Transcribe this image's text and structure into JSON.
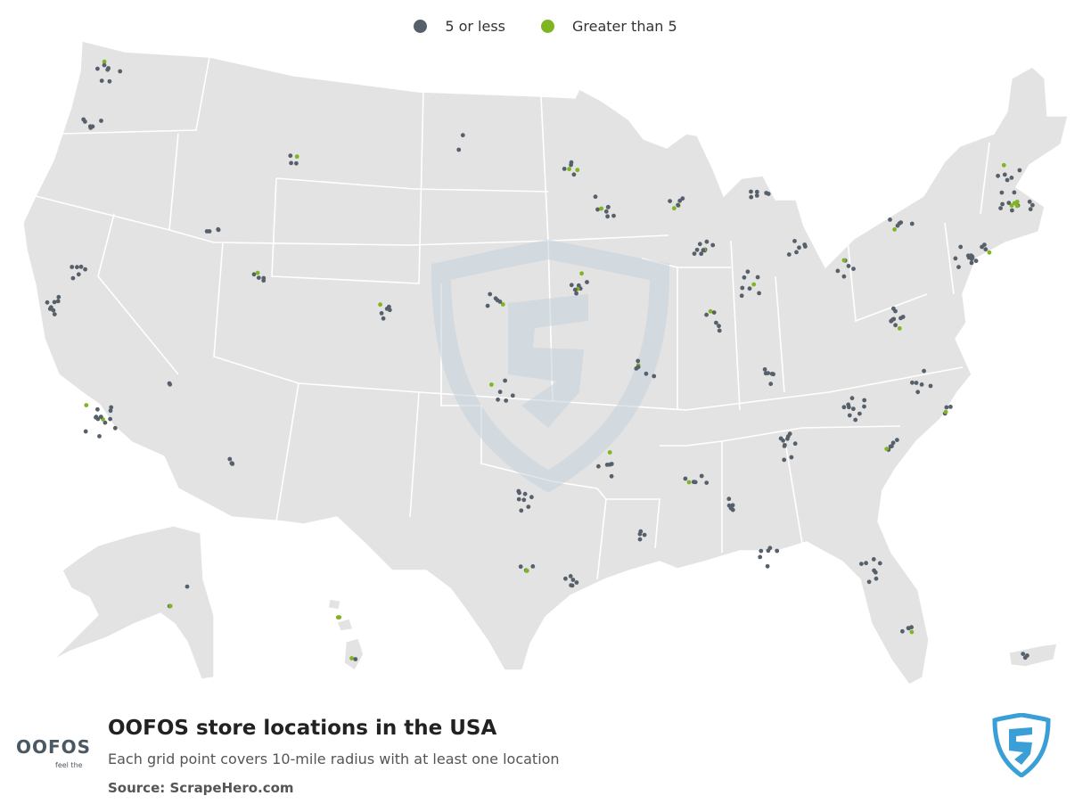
{
  "legend": {
    "items": [
      {
        "label": "5 or less",
        "color": "#56606b"
      },
      {
        "label": "Greater than 5",
        "color": "#7fb522"
      }
    ]
  },
  "footer": {
    "title": "OOFOS store locations in the USA",
    "subtitle": "Each grid point covers 10-mile radius with at least one location",
    "source": "Source: ScrapeHero.com"
  },
  "brand": {
    "name": "OOFOS",
    "tagline": "feel the"
  },
  "colors": {
    "land": "#e3e3e3",
    "border": "#ffffff",
    "watermark": "#d3dde3",
    "accent_logo": "#3a9fd6"
  },
  "icons": {
    "brand_logo": "oofos-logo-icon",
    "scrapehero_logo": "scrapehero-shield-icon"
  }
}
